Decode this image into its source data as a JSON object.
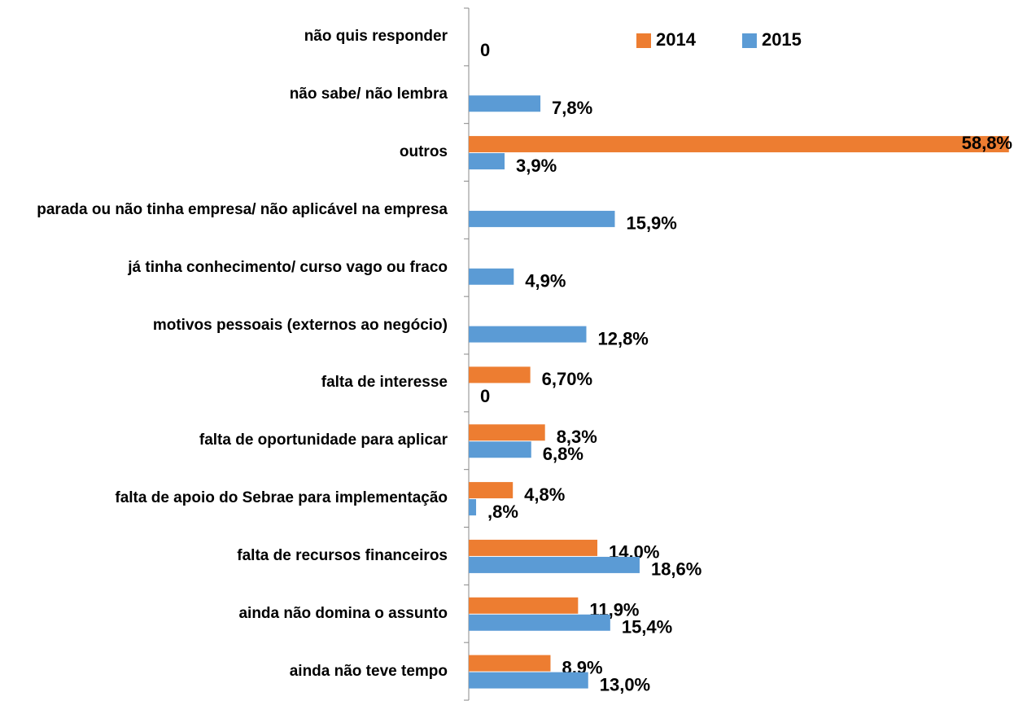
{
  "chart_data": {
    "type": "bar",
    "orientation": "horizontal",
    "categories": [
      "não quis responder",
      "não sabe/ não lembra",
      "outros",
      "parada ou não tinha empresa/ não aplicável na empresa",
      "já tinha conhecimento/ curso vago ou fraco",
      "motivos pessoais (externos ao negócio)",
      "falta de interesse",
      "falta de oportunidade para aplicar",
      "falta de apoio do Sebrae para implementação",
      "falta de recursos financeiros",
      "ainda não domina o assunto",
      "ainda não teve tempo"
    ],
    "series": [
      {
        "name": "2014",
        "color": "#ED7D31",
        "values": [
          null,
          null,
          58.8,
          null,
          null,
          null,
          6.7,
          8.3,
          4.8,
          14.0,
          11.9,
          8.9
        ],
        "value_labels": [
          null,
          null,
          "58,8%",
          null,
          null,
          null,
          "6,70%",
          "8,3%",
          "4,8%",
          "14,0%",
          "11,9%",
          "8,9%"
        ]
      },
      {
        "name": "2015",
        "color": "#5B9BD5",
        "values": [
          0,
          7.8,
          3.9,
          15.9,
          4.9,
          12.8,
          0,
          6.8,
          0.8,
          18.6,
          15.4,
          13.0
        ],
        "value_labels": [
          "0",
          "7,8%",
          "3,9%",
          "15,9%",
          "4,9%",
          "12,8%",
          "0",
          "6,8%",
          ",8%",
          "18,6%",
          "15,4%",
          "13,0%"
        ]
      }
    ],
    "xlim": [
      0,
      59
    ],
    "legend": "top-right"
  }
}
